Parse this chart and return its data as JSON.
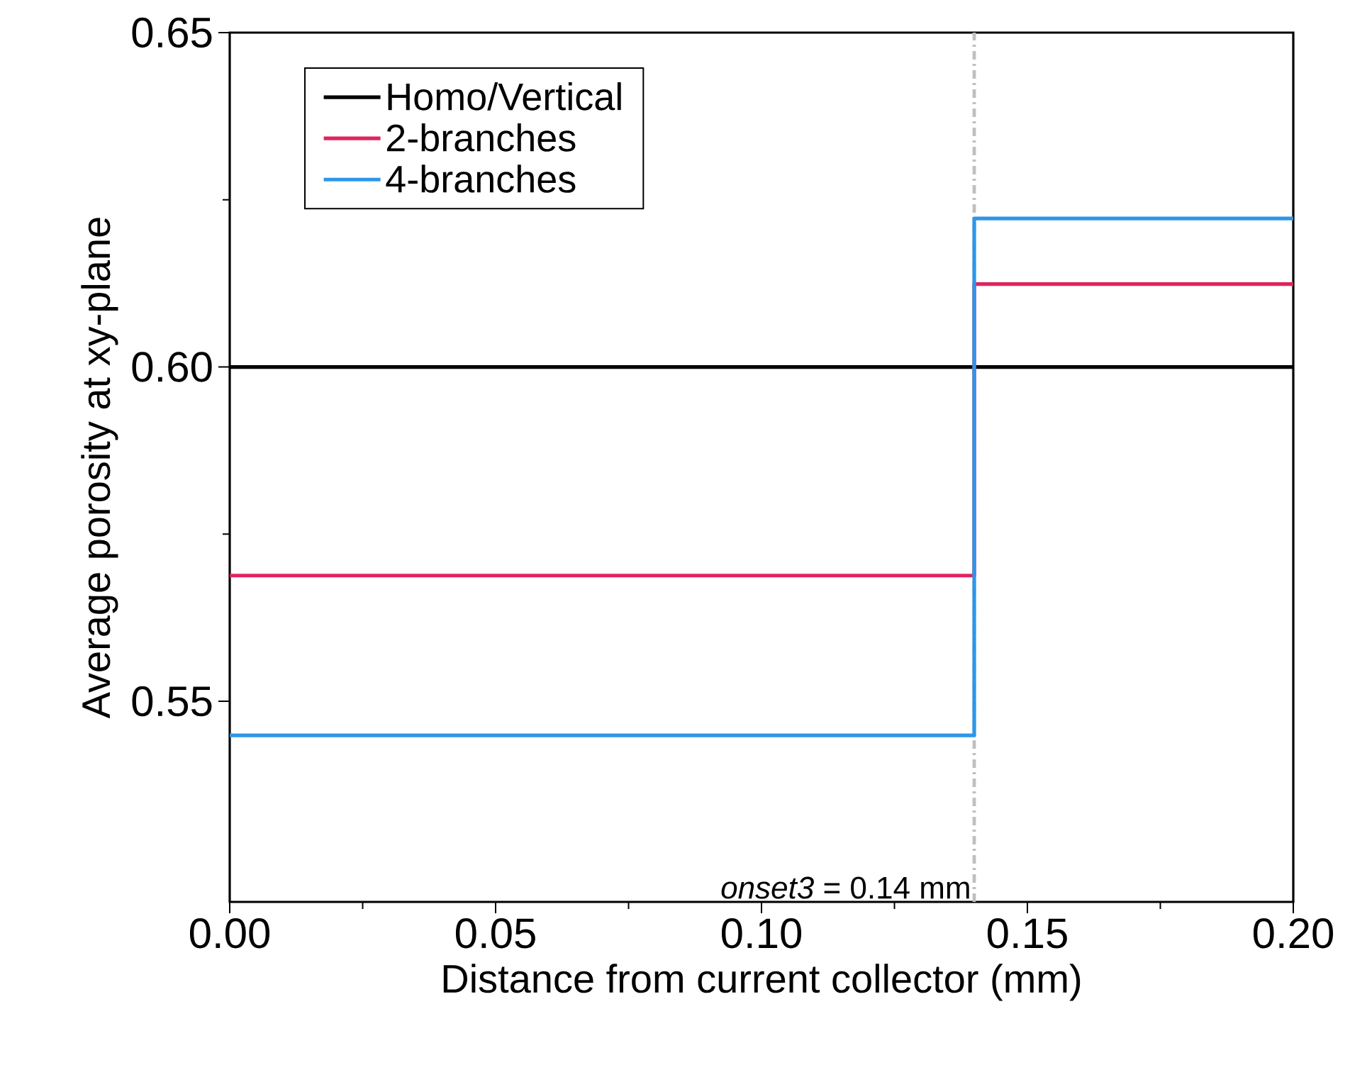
{
  "chart_data": {
    "type": "step",
    "xlabel": "Distance from current collector (mm)",
    "ylabel": "Average porosity at xy-plane",
    "x": [
      0,
      0.14,
      0.2
    ],
    "series": [
      {
        "name": "Homo/Vertical",
        "color": "#000000",
        "values": [
          0.6,
          0.6,
          0.6
        ]
      },
      {
        "name": "2-branches",
        "color": "#e0245e",
        "values": [
          0.5688,
          0.6124,
          0.6124
        ]
      },
      {
        "name": "4-branches",
        "color": "#2e96e8",
        "values": [
          0.5449,
          0.6222,
          0.6222
        ]
      }
    ],
    "xlim": [
      0,
      0.2
    ],
    "ylim": [
      0.52,
      0.65
    ],
    "xticks": [
      {
        "value": 0,
        "label": "0.00"
      },
      0.05,
      {
        "value": 0.1,
        "label": "0.10"
      },
      0.15,
      {
        "value": 0.2,
        "label": "0.20"
      }
    ],
    "yticks": [
      0.55,
      {
        "value": 0.6,
        "label": "0.60"
      },
      0.65
    ],
    "ref_lines": [
      {
        "axis": "x",
        "value": 0.14,
        "label": "*onset3* = 0.14 mm",
        "color": "#c0c0c0",
        "line_style": "dashed"
      }
    ],
    "legend": "top left",
    "grid": false,
    "marker": "none",
    "line_style": "solid"
  }
}
